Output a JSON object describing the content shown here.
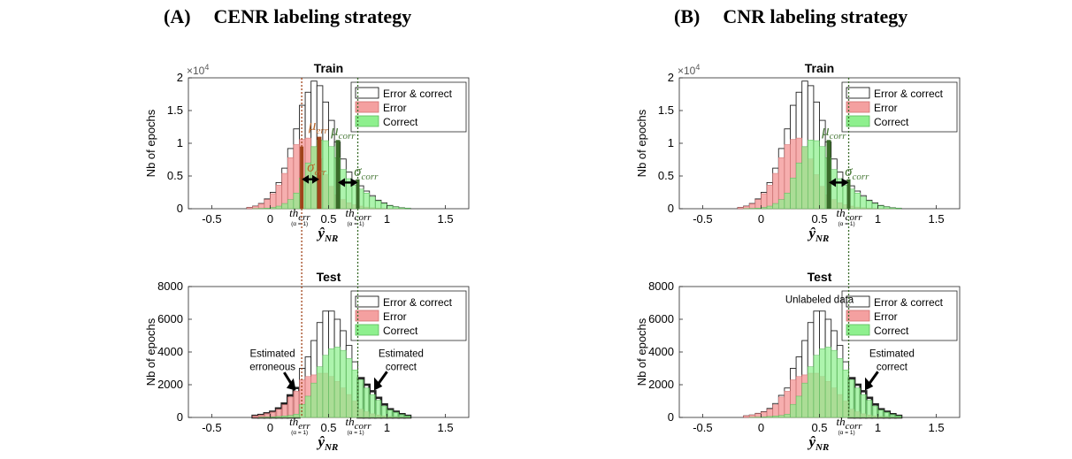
{
  "panels": [
    {
      "letter": "(A)",
      "title": "CENR labeling strategy"
    },
    {
      "letter": "(B)",
      "title": "CNR labeling strategy"
    }
  ],
  "colors": {
    "error_fill": "#f4a0a0",
    "correct_fill": "#8ef08e",
    "outline": "#222222",
    "err_line": "#a0441a",
    "corr_line": "#3a6b2a",
    "err_label": "#b5652b",
    "corr_label": "#4a7a3a"
  },
  "chart_data": [
    {
      "type": "bar",
      "panel": "A",
      "subplot": "train",
      "title": "Train",
      "xlabel": "ŷ_NR",
      "ylabel": "Nb of epochs",
      "y_exponent_label": "×10^4",
      "xlim": [
        -0.7,
        1.7
      ],
      "ylim": [
        0,
        20000
      ],
      "xticks": [
        "-0.5",
        "0",
        "0.5",
        "1",
        "1.5"
      ],
      "yticks": [
        "0",
        "0.5",
        "1",
        "1.5",
        "2"
      ],
      "legend": [
        "Error & correct",
        "Error",
        "Correct"
      ],
      "legend_position": "top-right",
      "bin_width": 0.05,
      "bin_start": -0.2,
      "series": [
        {
          "name": "Error & correct",
          "values": [
            200,
            400,
            800,
            1500,
            2500,
            4000,
            6200,
            9200,
            12200,
            15800,
            17800,
            19500,
            18800,
            16300,
            13500,
            10200,
            7600,
            5600,
            4300,
            3500,
            2700,
            2000,
            1300,
            900,
            500,
            300,
            150,
            80
          ]
        },
        {
          "name": "Error",
          "values": [
            200,
            380,
            750,
            1400,
            2300,
            3600,
            5400,
            7800,
            9800,
            10600,
            10800,
            9400,
            7600,
            5200,
            3400,
            2100,
            1400,
            900,
            600,
            400,
            250,
            150,
            100,
            60,
            30,
            20,
            10,
            0
          ]
        },
        {
          "name": "Correct",
          "values": [
            0,
            20,
            50,
            100,
            200,
            400,
            800,
            1400,
            2400,
            4700,
            7000,
            9500,
            10500,
            10400,
            9500,
            7800,
            6000,
            4600,
            3600,
            3000,
            2400,
            1800,
            1200,
            800,
            450,
            280,
            140,
            80
          ]
        }
      ],
      "annotations": {
        "mu_err": 0.42,
        "mu_corr": 0.58,
        "th_err": 0.27,
        "th_corr": 0.75
      }
    },
    {
      "type": "bar",
      "panel": "A",
      "subplot": "test",
      "title": "Test",
      "xlabel": "ŷ_NR",
      "ylabel": "Nb of epochs",
      "xlim": [
        -0.7,
        1.7
      ],
      "ylim": [
        0,
        8000
      ],
      "xticks": [
        "-0.5",
        "0",
        "0.5",
        "1",
        "1.5"
      ],
      "yticks": [
        "0",
        "2000",
        "4000",
        "6000",
        "8000"
      ],
      "legend": [
        "Error & correct",
        "Error",
        "Correct"
      ],
      "legend_position": "top-right",
      "bin_width": 0.05,
      "bin_start": -0.15,
      "series": [
        {
          "name": "Error & correct",
          "values": [
            100,
            150,
            250,
            350,
            550,
            850,
            1350,
            1800,
            3000,
            3700,
            4700,
            5800,
            6500,
            6500,
            6000,
            5300,
            4400,
            3400,
            2400,
            2000,
            1600,
            1200,
            800,
            500,
            350,
            200,
            100
          ]
        },
        {
          "name": "Error",
          "values": [
            100,
            150,
            240,
            330,
            500,
            780,
            1250,
            1600,
            2300,
            2500,
            2600,
            2700,
            2700,
            2500,
            2200,
            1800,
            1400,
            1000,
            500,
            350,
            220,
            150,
            90,
            50,
            30,
            15,
            5
          ]
        },
        {
          "name": "Correct",
          "values": [
            0,
            10,
            20,
            30,
            60,
            90,
            120,
            200,
            800,
            1300,
            2100,
            3100,
            3800,
            4200,
            4300,
            4100,
            3600,
            2900,
            2300,
            1800,
            1400,
            1050,
            700,
            450,
            320,
            185,
            95
          ]
        }
      ],
      "annotations": {
        "th_err": 0.27,
        "th_corr": 0.75,
        "estimated_err_label": "Estimated\nerroneous",
        "estimated_corr_label": "Estimated\ncorrect"
      }
    },
    {
      "type": "bar",
      "panel": "B",
      "subplot": "train",
      "title": "Train",
      "xlabel": "ŷ_NR",
      "ylabel": "Nb of epochs",
      "y_exponent_label": "×10^4",
      "xlim": [
        -0.7,
        1.7
      ],
      "ylim": [
        0,
        20000
      ],
      "xticks": [
        "-0.5",
        "0",
        "0.5",
        "1",
        "1.5"
      ],
      "yticks": [
        "0",
        "0.5",
        "1",
        "1.5",
        "2"
      ],
      "legend": [
        "Error & correct",
        "Error",
        "Correct"
      ],
      "legend_position": "top-right",
      "bin_width": 0.05,
      "bin_start": -0.2,
      "series": [
        {
          "name": "Error & correct",
          "values": [
            200,
            400,
            800,
            1500,
            2500,
            4000,
            6200,
            9200,
            12200,
            15800,
            17800,
            19500,
            18800,
            16300,
            13500,
            10200,
            7600,
            5600,
            4300,
            3500,
            2700,
            2000,
            1300,
            900,
            500,
            300,
            150,
            80
          ]
        },
        {
          "name": "Error",
          "values": [
            200,
            380,
            750,
            1400,
            2300,
            3600,
            5400,
            7800,
            9800,
            10600,
            10800,
            9400,
            7600,
            5200,
            3400,
            2100,
            1400,
            900,
            600,
            400,
            250,
            150,
            100,
            60,
            30,
            20,
            10,
            0
          ]
        },
        {
          "name": "Correct",
          "values": [
            0,
            20,
            50,
            100,
            200,
            400,
            800,
            1400,
            2400,
            4700,
            7000,
            9500,
            10500,
            10400,
            9500,
            7800,
            6000,
            4600,
            3600,
            3000,
            2400,
            1800,
            1200,
            800,
            450,
            280,
            140,
            80
          ]
        }
      ],
      "annotations": {
        "mu_corr": 0.58,
        "th_corr": 0.75
      }
    },
    {
      "type": "bar",
      "panel": "B",
      "subplot": "test",
      "title": "Test",
      "xlabel": "ŷ_NR",
      "ylabel": "Nb of epochs",
      "xlim": [
        -0.7,
        1.7
      ],
      "ylim": [
        0,
        8000
      ],
      "xticks": [
        "-0.5",
        "0",
        "0.5",
        "1",
        "1.5"
      ],
      "yticks": [
        "0",
        "2000",
        "4000",
        "6000",
        "8000"
      ],
      "legend": [
        "Error & correct",
        "Error",
        "Correct"
      ],
      "legend_position": "top-right",
      "bin_width": 0.05,
      "bin_start": -0.15,
      "series": [
        {
          "name": "Error & correct",
          "values": [
            100,
            150,
            250,
            350,
            550,
            850,
            1350,
            1800,
            3000,
            3700,
            4700,
            5800,
            6500,
            6500,
            6000,
            5300,
            4400,
            3400,
            2400,
            2000,
            1600,
            1200,
            800,
            500,
            350,
            200,
            100
          ]
        },
        {
          "name": "Error",
          "values": [
            100,
            150,
            240,
            330,
            500,
            780,
            1250,
            1600,
            2300,
            2500,
            2600,
            2700,
            2700,
            2500,
            2200,
            1800,
            1400,
            1000,
            500,
            350,
            220,
            150,
            90,
            50,
            30,
            15,
            5
          ]
        },
        {
          "name": "Correct",
          "values": [
            0,
            10,
            20,
            30,
            60,
            90,
            120,
            200,
            800,
            1300,
            2100,
            3100,
            3800,
            4200,
            4300,
            4100,
            3600,
            2900,
            2300,
            1800,
            1400,
            1050,
            700,
            450,
            320,
            185,
            95
          ]
        }
      ],
      "annotations": {
        "th_corr": 0.75,
        "unlabeled_label": "Unlabeled data",
        "estimated_corr_label": "Estimated\ncorrect"
      }
    }
  ]
}
